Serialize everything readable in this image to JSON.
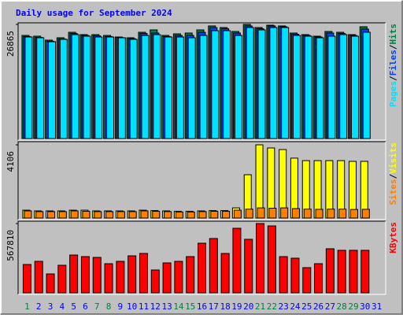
{
  "chart_data": [
    {
      "type": "bar",
      "title": "Daily usage for September 2024",
      "title_color": "#0000ff",
      "legend_separator": "/",
      "ylim": [
        0,
        26865
      ],
      "yticks": [
        26865
      ],
      "series": [
        {
          "name": "Pages",
          "color": "#00e0ff",
          "values": [
            23900,
            23720,
            22790,
            23350,
            24460,
            24090,
            23900,
            23900,
            23720,
            23350,
            24270,
            24460,
            23900,
            23900,
            23720,
            24270,
            25390,
            25390,
            24270,
            26130,
            25570,
            26130,
            26130,
            24270,
            24090,
            23720,
            24090,
            24460,
            24090,
            25020,
            null
          ]
        },
        {
          "name": "Files",
          "color": "#0040ff",
          "values": [
            24000,
            23810,
            22900,
            23450,
            24720,
            24250,
            24180,
            24000,
            23750,
            23500,
            24720,
            24830,
            24000,
            24270,
            24270,
            25000,
            26100,
            25850,
            24830,
            26500,
            25850,
            26500,
            26310,
            24550,
            24270,
            23900,
            24830,
            24720,
            24270,
            25760,
            null
          ]
        },
        {
          "name": "Hits",
          "color": "#008040",
          "values": [
            24270,
            24090,
            23160,
            23720,
            25010,
            24460,
            24460,
            24270,
            23900,
            23720,
            25010,
            25570,
            24270,
            24640,
            24830,
            25570,
            26500,
            26130,
            25200,
            26865,
            26130,
            26680,
            26500,
            24830,
            24460,
            24090,
            25200,
            25010,
            24460,
            26310,
            null
          ]
        }
      ]
    },
    {
      "type": "bar",
      "ylim": [
        0,
        4106
      ],
      "yticks": [
        4106
      ],
      "series": [
        {
          "name": "Sites",
          "color": "#ff8000",
          "values": [
            400,
            360,
            360,
            360,
            400,
            380,
            360,
            360,
            360,
            360,
            400,
            380,
            360,
            340,
            340,
            360,
            380,
            380,
            440,
            500,
            570,
            550,
            570,
            530,
            500,
            490,
            500,
            500,
            480,
            490,
            null
          ]
        },
        {
          "name": "Visits",
          "color": "#ffff00",
          "values": [
            440,
            400,
            400,
            400,
            440,
            440,
            400,
            400,
            400,
            400,
            440,
            420,
            400,
            380,
            380,
            400,
            420,
            420,
            570,
            2430,
            4106,
            3930,
            3840,
            3360,
            3220,
            3220,
            3220,
            3220,
            3180,
            3180,
            null
          ]
        }
      ]
    },
    {
      "type": "bar",
      "ylim": [
        0,
        567810
      ],
      "yticks": [
        567810
      ],
      "categories": [
        "1",
        "2",
        "3",
        "4",
        "5",
        "6",
        "7",
        "8",
        "9",
        "10",
        "11",
        "12",
        "13",
        "14",
        "15",
        "16",
        "17",
        "18",
        "19",
        "20",
        "21",
        "22",
        "23",
        "24",
        "25",
        "26",
        "27",
        "28",
        "29",
        "30",
        "31"
      ],
      "category_colors": [
        "#008040",
        "#0000ff",
        "#0000ff",
        "#0000ff",
        "#0000ff",
        "#0000ff",
        "#008040",
        "#008040",
        "#0000ff",
        "#0000ff",
        "#0000ff",
        "#0000ff",
        "#0000ff",
        "#008040",
        "#008040",
        "#0000ff",
        "#0000ff",
        "#0000ff",
        "#0000ff",
        "#0000ff",
        "#008040",
        "#008040",
        "#0000ff",
        "#0000ff",
        "#0000ff",
        "#0000ff",
        "#0000ff",
        "#008040",
        "#008040",
        "#0000ff",
        "#0000ff"
      ],
      "series": [
        {
          "name": "KBytes",
          "color": "#ff0000",
          "values": [
            232270,
            258080,
            154850,
            225820,
            309700,
            296790,
            290340,
            238720,
            258080,
            303240,
            322600,
            187110,
            245180,
            258080,
            296790,
            406480,
            445190,
            322600,
            529060,
            438740,
            567810,
            548420,
            296790,
            283890,
            206460,
            238720,
            361310,
            348410,
            348410,
            348410,
            null
          ]
        }
      ]
    }
  ]
}
